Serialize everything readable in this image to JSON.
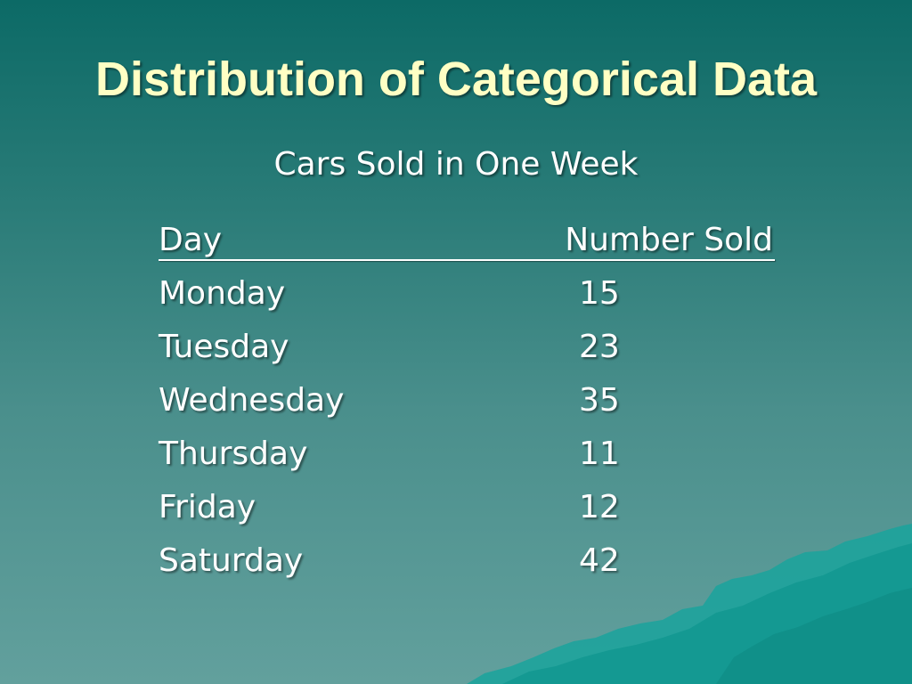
{
  "slide": {
    "title": "Distribution of Categorical Data",
    "subtitle": "Cars Sold in One Week"
  },
  "table": {
    "headers": {
      "day": "Day",
      "number": "Number Sold"
    },
    "rows": [
      {
        "day": "Monday",
        "number": "15"
      },
      {
        "day": "Tuesday",
        "number": "23"
      },
      {
        "day": "Wednesday",
        "number": "35"
      },
      {
        "day": "Thursday",
        "number": "11"
      },
      {
        "day": "Friday",
        "number": "12"
      },
      {
        "day": "Saturday",
        "number": "42"
      }
    ]
  },
  "colors": {
    "title": "#ffffc4",
    "text": "#ffffff",
    "background_top": "#0c6a66",
    "background_bottom": "#62a09d",
    "decor": "#159e98"
  }
}
